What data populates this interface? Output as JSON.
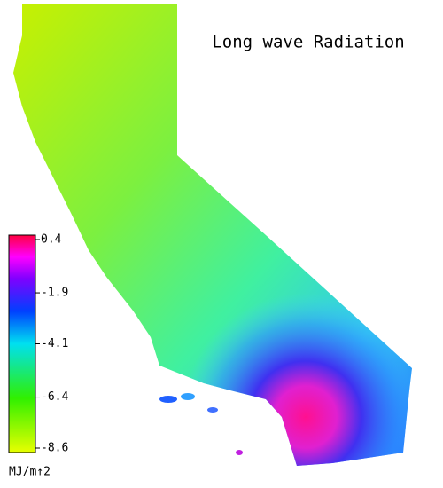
{
  "title": "Long wave Radiation",
  "colorbar": {
    "lim": [
      -8.6,
      0.4
    ],
    "ticks": [
      0.4,
      -1.9,
      -4.1,
      -6.4,
      -8.6
    ],
    "label": "MJ/m↑2"
  }
}
